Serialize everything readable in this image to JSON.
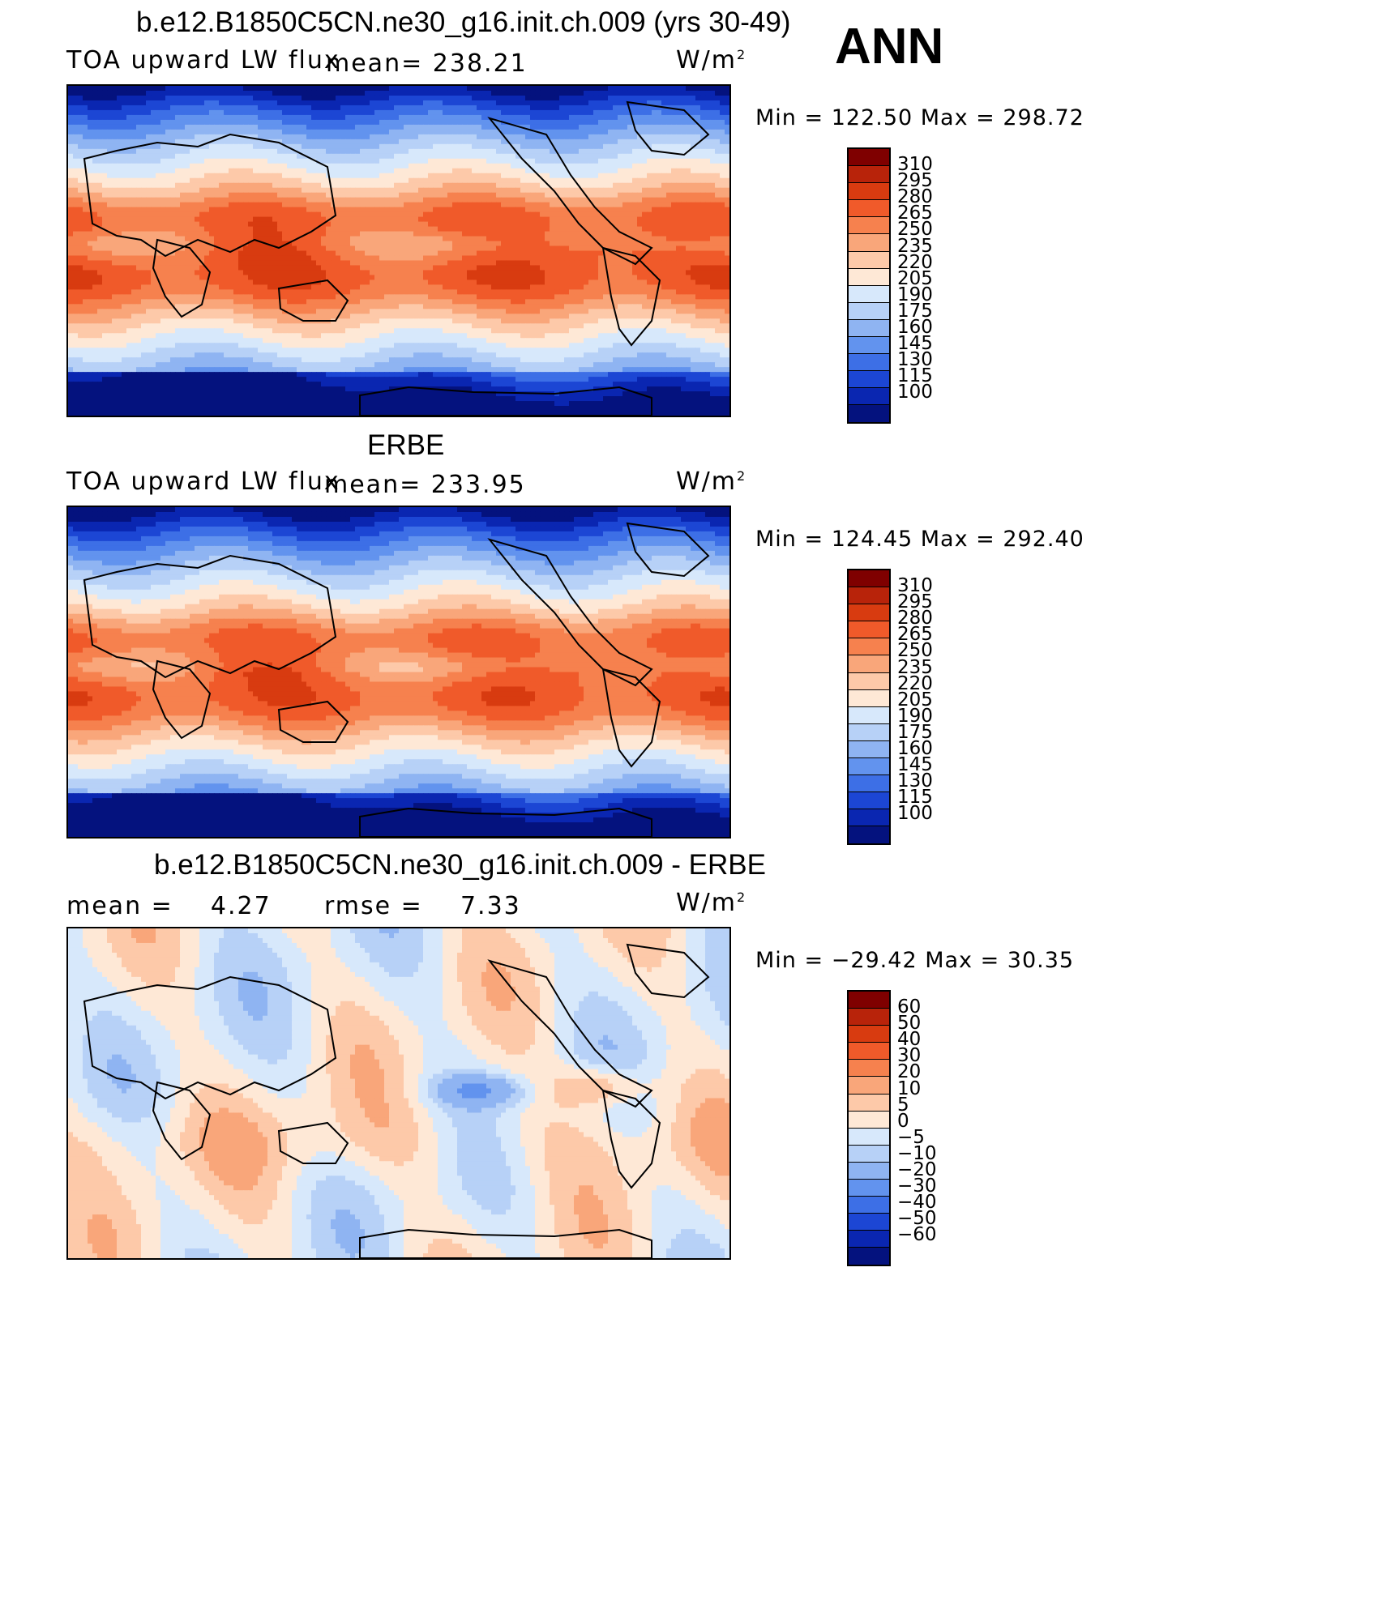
{
  "page": {
    "season": "ANN"
  },
  "panels": [
    {
      "title": "b.e12.B1850C5CN.ne30_g16.init.ch.009 (yrs 30-49)",
      "left_label": "TOA upward LW flux",
      "stat_label": "mean=",
      "stat_value": "238.21",
      "units": "W/m",
      "units_sup": "2",
      "minmax": "Min  =  122.50  Max  =  298.72",
      "colorbar": [
        "310",
        "295",
        "280",
        "265",
        "250",
        "235",
        "220",
        "205",
        "190",
        "175",
        "160",
        "145",
        "130",
        "115",
        "100"
      ]
    },
    {
      "title": "ERBE",
      "left_label": "TOA upward LW flux",
      "stat_label": "mean=",
      "stat_value": "233.95",
      "units": "W/m",
      "units_sup": "2",
      "minmax": "Min  =  124.45  Max  =  292.40",
      "colorbar": [
        "310",
        "295",
        "280",
        "265",
        "250",
        "235",
        "220",
        "205",
        "190",
        "175",
        "160",
        "145",
        "130",
        "115",
        "100"
      ]
    },
    {
      "title": "b.e12.B1850C5CN.ne30_g16.init.ch.009 - ERBE",
      "left_label": "mean =",
      "left_value": "4.27",
      "stat_label": "rmse =",
      "stat_value": "7.33",
      "units": "W/m",
      "units_sup": "2",
      "minmax": "Min  =  −29.42  Max  =    30.35",
      "colorbar": [
        "60",
        "50",
        "40",
        "30",
        "20",
        "10",
        "5",
        "0",
        "−5",
        "−10",
        "−20",
        "−30",
        "−40",
        "−50",
        "−60"
      ]
    }
  ],
  "colors": {
    "abs_scale": [
      "#7f0000",
      "#b8230a",
      "#d83b10",
      "#f05a2a",
      "#f6814e",
      "#f9a67a",
      "#fdc9a9",
      "#fee8d6",
      "#d7e8fb",
      "#b7d1f7",
      "#8fb4f2",
      "#6293ee",
      "#3d6fe6",
      "#1c46d4",
      "#0a26b1",
      "#04127e"
    ],
    "diff_scale": [
      "#7f0000",
      "#b8230a",
      "#d83b10",
      "#f05a2a",
      "#f6814e",
      "#f9a67a",
      "#fdc9a9",
      "#fee8d6",
      "#d7e8fb",
      "#b7d1f7",
      "#8fb4f2",
      "#6293ee",
      "#3d6fe6",
      "#1c46d4",
      "#0a26b1",
      "#04127e"
    ]
  }
}
